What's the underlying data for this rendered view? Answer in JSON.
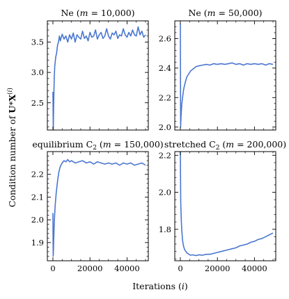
{
  "figure": {
    "ylabel": "Condition number of U*X(i)",
    "xlabel": "Iterations (i)"
  },
  "chart_data": [
    {
      "type": "line",
      "title": "Ne (m = 10,000)",
      "xlim": [
        -3000,
        51500
      ],
      "ylim": [
        2.05,
        3.85
      ],
      "xticks": [
        0,
        20000,
        40000
      ],
      "xtick_labels": [],
      "yticks": [
        2.5,
        3.0,
        3.5
      ],
      "ytick_labels": [
        "2.5",
        "3.0",
        "3.5"
      ],
      "grid": false,
      "color": "#4a77cf",
      "series": [
        {
          "x": [
            0,
            200,
            400,
            700,
            1000,
            1500,
            2000,
            2500,
            3000,
            3500,
            4000,
            5000,
            6000,
            7000,
            8000,
            9000,
            10000,
            11000,
            12000,
            13000,
            14000,
            15000,
            16000,
            17000,
            18000,
            19000,
            20000,
            21000,
            22000,
            23000,
            24000,
            25000,
            26000,
            27000,
            28000,
            29000,
            30000,
            31000,
            32000,
            33000,
            34000,
            35000,
            36000,
            37000,
            38000,
            39000,
            40000,
            41000,
            42000,
            43000,
            44000,
            45000,
            46000,
            47000,
            48000,
            49000,
            50000
          ],
          "y": [
            2.68,
            2.05,
            2.45,
            2.9,
            3.1,
            3.25,
            3.32,
            3.45,
            3.5,
            3.6,
            3.52,
            3.63,
            3.55,
            3.6,
            3.5,
            3.62,
            3.55,
            3.65,
            3.5,
            3.62,
            3.58,
            3.55,
            3.68,
            3.56,
            3.6,
            3.52,
            3.66,
            3.58,
            3.6,
            3.7,
            3.55,
            3.62,
            3.66,
            3.56,
            3.6,
            3.72,
            3.6,
            3.55,
            3.65,
            3.62,
            3.68,
            3.56,
            3.62,
            3.6,
            3.72,
            3.62,
            3.58,
            3.66,
            3.6,
            3.7,
            3.62,
            3.6,
            3.75,
            3.62,
            3.68,
            3.58,
            3.62
          ]
        }
      ]
    },
    {
      "type": "line",
      "title": "Ne (m = 50,000)",
      "xlim": [
        -3000,
        51500
      ],
      "ylim": [
        1.98,
        2.72
      ],
      "xticks": [
        0,
        20000,
        40000
      ],
      "xtick_labels": [],
      "yticks": [
        2.0,
        2.2,
        2.4,
        2.6
      ],
      "ytick_labels": [
        "2.0",
        "2.2",
        "2.4",
        "2.6"
      ],
      "grid": false,
      "color": "#4a77cf",
      "series": [
        {
          "x": [
            0,
            150,
            300,
            500,
            800,
            1200,
            1700,
            2200,
            2800,
            3500,
            4500,
            5500,
            6500,
            7500,
            8500,
            10000,
            12000,
            14000,
            16000,
            18000,
            20000,
            22000,
            24000,
            26000,
            28000,
            30000,
            32000,
            34000,
            36000,
            38000,
            40000,
            42000,
            44000,
            46000,
            48000,
            50000
          ],
          "y": [
            2.7,
            2.0,
            2.05,
            2.1,
            2.16,
            2.2,
            2.25,
            2.28,
            2.31,
            2.34,
            2.36,
            2.38,
            2.39,
            2.4,
            2.41,
            2.415,
            2.42,
            2.425,
            2.42,
            2.43,
            2.425,
            2.43,
            2.425,
            2.43,
            2.435,
            2.425,
            2.43,
            2.42,
            2.43,
            2.425,
            2.43,
            2.425,
            2.43,
            2.42,
            2.43,
            2.425
          ]
        }
      ]
    },
    {
      "type": "line",
      "title": "equilibrium C2 (m = 150,000)",
      "xlim": [
        -3000,
        51500
      ],
      "ylim": [
        1.82,
        2.3
      ],
      "xticks": [
        0,
        20000,
        40000
      ],
      "xtick_labels": [
        "0",
        "20000",
        "40000"
      ],
      "yticks": [
        1.9,
        2.0,
        2.1,
        2.2
      ],
      "ytick_labels": [
        "1.9",
        "2.0",
        "2.1",
        "2.2"
      ],
      "grid": false,
      "color": "#4a77cf",
      "series": [
        {
          "x": [
            0,
            150,
            300,
            500,
            800,
            1200,
            1800,
            2500,
            3200,
            4000,
            5000,
            6000,
            7000,
            8000,
            9000,
            10000,
            12000,
            14000,
            16000,
            18000,
            20000,
            22000,
            24000,
            26000,
            28000,
            30000,
            32000,
            34000,
            36000,
            38000,
            40000,
            42000,
            44000,
            46000,
            48000,
            50000
          ],
          "y": [
            2.03,
            1.84,
            1.87,
            1.93,
            2.0,
            2.06,
            2.12,
            2.17,
            2.21,
            2.235,
            2.25,
            2.26,
            2.255,
            2.265,
            2.255,
            2.26,
            2.25,
            2.255,
            2.26,
            2.25,
            2.255,
            2.245,
            2.255,
            2.25,
            2.245,
            2.25,
            2.245,
            2.25,
            2.24,
            2.25,
            2.245,
            2.25,
            2.24,
            2.245,
            2.25,
            2.24
          ]
        }
      ]
    },
    {
      "type": "line",
      "title": "stretched C2 (m = 200,000)",
      "xlim": [
        -3000,
        51500
      ],
      "ylim": [
        1.63,
        2.22
      ],
      "xticks": [
        0,
        20000,
        40000
      ],
      "xtick_labels": [
        "0",
        "20000",
        "40000"
      ],
      "yticks": [
        1.8,
        2.0,
        2.2
      ],
      "ytick_labels": [
        "1.8",
        "2.0",
        "2.2"
      ],
      "grid": false,
      "color": "#4a77cf",
      "series": [
        {
          "x": [
            0,
            200,
            500,
            800,
            1200,
            1700,
            2300,
            3000,
            3800,
            4600,
            5500,
            6500,
            7500,
            8500,
            10000,
            12000,
            14000,
            16000,
            18000,
            20000,
            22000,
            24000,
            26000,
            28000,
            30000,
            32000,
            34000,
            36000,
            38000,
            40000,
            42000,
            44000,
            46000,
            48000,
            50000
          ],
          "y": [
            2.22,
            1.95,
            1.85,
            1.79,
            1.74,
            1.71,
            1.69,
            1.68,
            1.67,
            1.665,
            1.66,
            1.662,
            1.66,
            1.658,
            1.662,
            1.66,
            1.665,
            1.665,
            1.67,
            1.675,
            1.68,
            1.685,
            1.69,
            1.695,
            1.7,
            1.71,
            1.715,
            1.72,
            1.73,
            1.735,
            1.745,
            1.75,
            1.76,
            1.77,
            1.78
          ]
        }
      ]
    }
  ]
}
